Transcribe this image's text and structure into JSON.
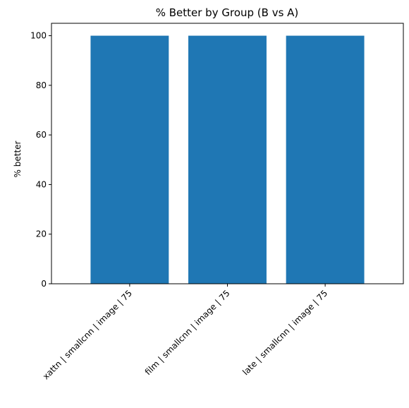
{
  "chart_data": {
    "type": "bar",
    "title": "% Better by Group (B vs A)",
    "xlabel": "",
    "ylabel": "% better",
    "categories": [
      "xattn | smallcnn | image | 75",
      "film | smallcnn | image | 75",
      "late | smallcnn | image | 75"
    ],
    "values": [
      100,
      100,
      100
    ],
    "ylim": [
      0,
      105
    ],
    "yticks": [
      0,
      20,
      40,
      60,
      80,
      100
    ],
    "grid": false,
    "legend": "none",
    "bar_color": "#1f77b4"
  }
}
